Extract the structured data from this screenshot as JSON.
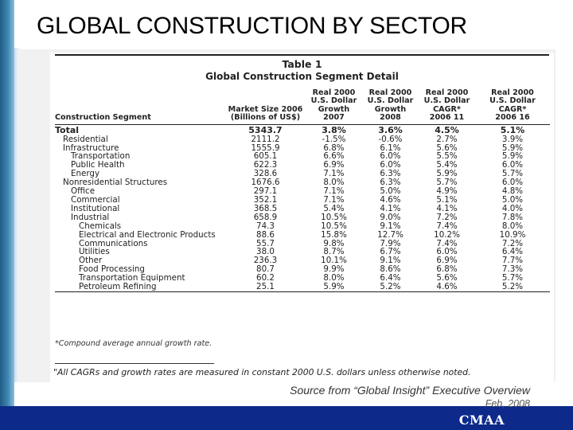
{
  "slide": {
    "title": "GLOBAL CONSTRUCTION BY SECTOR",
    "source": "Source from “Global Insight” Executive Overview",
    "date": "Feb, 2008",
    "brand": "CMAA",
    "colors": {
      "bottom_bar": "#0d2a8a",
      "left_bar": "#3f86b4"
    }
  },
  "table": {
    "title": "Table 1",
    "subtitle": "Global Construction Segment Detail",
    "headers": {
      "segment": "Construction Segment",
      "market_size": [
        "Market Size 2006",
        "(Billions of US$)"
      ],
      "growth_2007": [
        "Real 2000",
        "U.S. Dollar",
        "Growth",
        "2007"
      ],
      "growth_2008": [
        "Real 2000",
        "U.S. Dollar",
        "Growth",
        "2008"
      ],
      "cagr_2006_11": [
        "Real 2000",
        "U.S. Dollar",
        "CAGR*",
        "2006 11"
      ],
      "cagr_2006_16": [
        "Real 2000",
        "U.S. Dollar",
        "CAGR*",
        "2006 16"
      ]
    },
    "rows": [
      {
        "segment": "Total",
        "level": 0,
        "market": "5343.7",
        "g2007": "3.8%",
        "g2008": "3.6%",
        "cagr11": "4.5%",
        "cagr16": "5.1%"
      },
      {
        "segment": "Residential",
        "level": 1,
        "market": "2111.2",
        "g2007": "-1.5%",
        "g2008": "-0.6%",
        "cagr11": "2.7%",
        "cagr16": "3.9%"
      },
      {
        "segment": "Infrastructure",
        "level": 1,
        "market": "1555.9",
        "g2007": "6.8%",
        "g2008": "6.1%",
        "cagr11": "5.6%",
        "cagr16": "5.9%"
      },
      {
        "segment": "Transportation",
        "level": 2,
        "market": "605.1",
        "g2007": "6.6%",
        "g2008": "6.0%",
        "cagr11": "5.5%",
        "cagr16": "5.9%"
      },
      {
        "segment": "Public Health",
        "level": 2,
        "market": "622.3",
        "g2007": "6.9%",
        "g2008": "6.0%",
        "cagr11": "5.4%",
        "cagr16": "6.0%"
      },
      {
        "segment": "Energy",
        "level": 2,
        "market": "328.6",
        "g2007": "7.1%",
        "g2008": "6.3%",
        "cagr11": "5.9%",
        "cagr16": "5.7%"
      },
      {
        "segment": "Nonresidential Structures",
        "level": 1,
        "market": "1676.6",
        "g2007": "8.0%",
        "g2008": "6.3%",
        "cagr11": "5.7%",
        "cagr16": "6.0%"
      },
      {
        "segment": "Office",
        "level": 2,
        "market": "297.1",
        "g2007": "7.1%",
        "g2008": "5.0%",
        "cagr11": "4.9%",
        "cagr16": "4.8%"
      },
      {
        "segment": "Commercial",
        "level": 2,
        "market": "352.1",
        "g2007": "7.1%",
        "g2008": "4.6%",
        "cagr11": "5.1%",
        "cagr16": "5.0%"
      },
      {
        "segment": "Institutional",
        "level": 2,
        "market": "368.5",
        "g2007": "5.4%",
        "g2008": "4.1%",
        "cagr11": "4.1%",
        "cagr16": "4.0%"
      },
      {
        "segment": "Industrial",
        "level": 2,
        "market": "658.9",
        "g2007": "10.5%",
        "g2008": "9.0%",
        "cagr11": "7.2%",
        "cagr16": "7.8%"
      },
      {
        "segment": "Chemicals",
        "level": 3,
        "market": "74.3",
        "g2007": "10.5%",
        "g2008": "9.1%",
        "cagr11": "7.4%",
        "cagr16": "8.0%"
      },
      {
        "segment": "Electrical and Electronic Products",
        "level": 3,
        "market": "88.6",
        "g2007": "15.8%",
        "g2008": "12.7%",
        "cagr11": "10.2%",
        "cagr16": "10.9%"
      },
      {
        "segment": "Communications",
        "level": 3,
        "market": "55.7",
        "g2007": "9.8%",
        "g2008": "7.9%",
        "cagr11": "7.4%",
        "cagr16": "7.2%"
      },
      {
        "segment": "Utilities",
        "level": 3,
        "market": "38.0",
        "g2007": "8.7%",
        "g2008": "6.7%",
        "cagr11": "6.0%",
        "cagr16": "6.4%"
      },
      {
        "segment": "Other",
        "level": 3,
        "market": "236.3",
        "g2007": "10.1%",
        "g2008": "9.1%",
        "cagr11": "6.9%",
        "cagr16": "7.7%"
      },
      {
        "segment": "Food Processing",
        "level": 3,
        "market": "80.7",
        "g2007": "9.9%",
        "g2008": "8.6%",
        "cagr11": "6.8%",
        "cagr16": "7.3%"
      },
      {
        "segment": "Transportation Equipment",
        "level": 3,
        "market": "60.2",
        "g2007": "8.0%",
        "g2008": "6.4%",
        "cagr11": "5.6%",
        "cagr16": "5.7%"
      },
      {
        "segment": "Petroleum Refining",
        "level": 3,
        "market": "25.1",
        "g2007": "5.9%",
        "g2008": "5.2%",
        "cagr11": "4.6%",
        "cagr16": "5.2%"
      }
    ],
    "footnote": "*Compound average annual growth rate.",
    "note": "\"All CAGRs and growth rates are measured in constant 2000 U.S. dollars unless otherwise noted."
  }
}
